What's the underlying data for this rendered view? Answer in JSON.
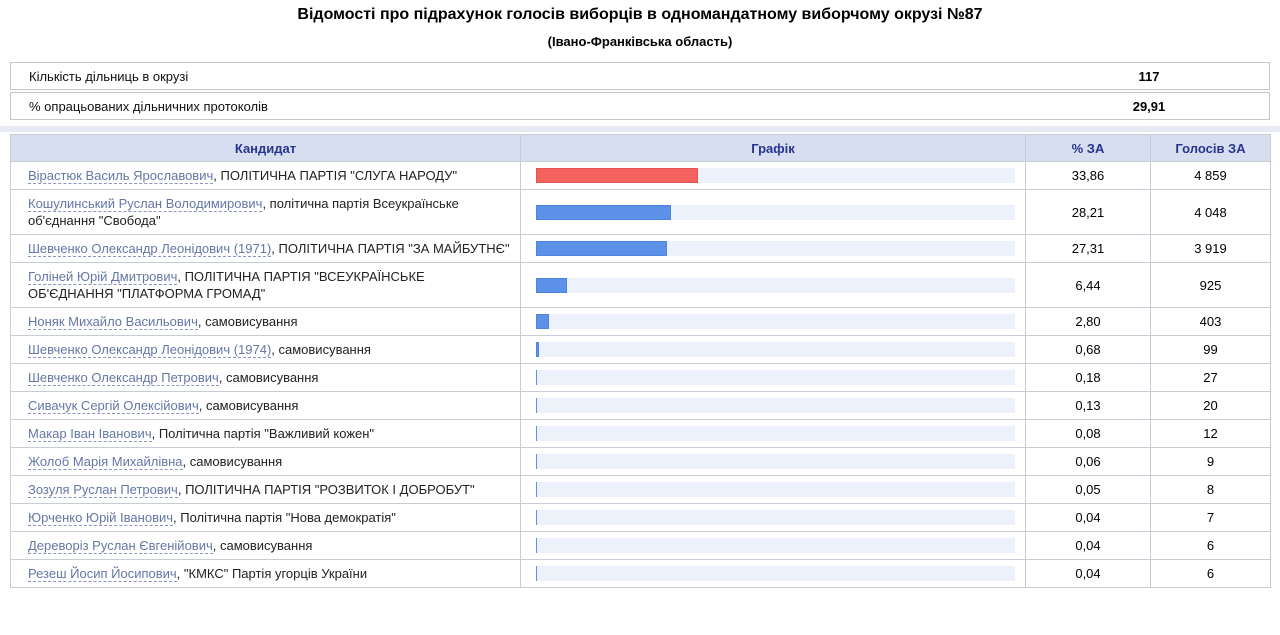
{
  "header": {
    "title": "Відомості про підрахунок голосів виборців в одномандатному виборчому окрузі №87",
    "subtitle": "(Івано-Франківська область)"
  },
  "info_rows": [
    {
      "label": "Кількість дільниць в окрузі",
      "value": "117"
    },
    {
      "label": "% опрацьованих дільничних протоколів",
      "value": "29,91"
    }
  ],
  "colors": {
    "leader_bar": "#f4625d",
    "leader_bar_border": "#e25550",
    "bar": "#5b92e8",
    "bar_border": "#4f86dc",
    "bar_track": "#edf1fb",
    "header_bg": "#d7def0",
    "header_text": "#27358f",
    "link": "#6577a6"
  },
  "table": {
    "headers": [
      "Кандидат",
      "Графік",
      "% ЗА",
      "Голосів ЗА"
    ],
    "rows": [
      {
        "candidate": "Вірастюк Василь Ярославович",
        "party": ", ПОЛІТИЧНА ПАРТІЯ \"СЛУГА НАРОДУ\"",
        "percent": "33,86",
        "votes": "4 859",
        "bar_percent": 33.86,
        "bar_color": "#f4625d",
        "bar_border": "#e25550"
      },
      {
        "candidate": "Кошулинський Руслан Володимирович",
        "party": ", політична партія Всеукраїнське об'єднання \"Свобода\"",
        "percent": "28,21",
        "votes": "4 048",
        "bar_percent": 28.21,
        "bar_color": "#5b92e8",
        "bar_border": "#4f86dc"
      },
      {
        "candidate": "Шевченко Олександр Леонідович (1971)",
        "party": ", ПОЛІТИЧНА ПАРТІЯ \"ЗА МАЙБУТНЄ\"",
        "percent": "27,31",
        "votes": "3 919",
        "bar_percent": 27.31,
        "bar_color": "#5b92e8",
        "bar_border": "#4f86dc"
      },
      {
        "candidate": "Голіней Юрій Дмитрович",
        "party": ", ПОЛІТИЧНА ПАРТІЯ \"ВСЕУКРАЇНСЬКЕ ОБ'ЄДНАННЯ \"ПЛАТФОРМА ГРОМАД\"",
        "percent": "6,44",
        "votes": "925",
        "bar_percent": 6.44,
        "bar_color": "#5b92e8",
        "bar_border": "#4f86dc"
      },
      {
        "candidate": "Ноняк Михайло Васильович",
        "party": ", самовисування",
        "percent": "2,80",
        "votes": "403",
        "bar_percent": 2.8,
        "bar_color": "#5b92e8",
        "bar_border": "#4f86dc"
      },
      {
        "candidate": "Шевченко Олександр Леонідович (1974)",
        "party": ", самовисування",
        "percent": "0,68",
        "votes": "99",
        "bar_percent": 0.68,
        "bar_color": "#5b92e8",
        "bar_border": "#4f86dc"
      },
      {
        "candidate": "Шевченко Олександр Петрович",
        "party": ", самовисування",
        "percent": "0,18",
        "votes": "27",
        "bar_percent": 0.18,
        "bar_color": "#5b92e8",
        "bar_border": "#4f86dc"
      },
      {
        "candidate": "Сивачук Сергій Олексійович",
        "party": ", самовисування",
        "percent": "0,13",
        "votes": "20",
        "bar_percent": 0.13,
        "bar_color": "#5b92e8",
        "bar_border": "#4f86dc"
      },
      {
        "candidate": "Макар Іван Іванович",
        "party": ", Політична партія \"Важливий кожен\"",
        "percent": "0,08",
        "votes": "12",
        "bar_percent": 0.08,
        "bar_color": "#5b92e8",
        "bar_border": "#4f86dc"
      },
      {
        "candidate": "Жолоб Марія Михайлівна",
        "party": ", самовисування",
        "percent": "0,06",
        "votes": "9",
        "bar_percent": 0.06,
        "bar_color": "#5b92e8",
        "bar_border": "#4f86dc"
      },
      {
        "candidate": "Зозуля Руслан Петрович",
        "party": ", ПОЛІТИЧНА ПАРТІЯ \"РОЗВИТОК І ДОБРОБУТ\"",
        "percent": "0,05",
        "votes": "8",
        "bar_percent": 0.05,
        "bar_color": "#5b92e8",
        "bar_border": "#4f86dc"
      },
      {
        "candidate": "Юрченко Юрій Іванович",
        "party": ", Політична партія \"Нова демократія\"",
        "percent": "0,04",
        "votes": "7",
        "bar_percent": 0.04,
        "bar_color": "#5b92e8",
        "bar_border": "#4f86dc"
      },
      {
        "candidate": "Дереворіз Руслан Євгенійович",
        "party": ", самовисування",
        "percent": "0,04",
        "votes": "6",
        "bar_percent": 0.04,
        "bar_color": "#5b92e8",
        "bar_border": "#4f86dc"
      },
      {
        "candidate": "Резеш Йосип Йосипович",
        "party": ", \"КМКС\" Партія угорців України",
        "percent": "0,04",
        "votes": "6",
        "bar_percent": 0.04,
        "bar_color": "#5b92e8",
        "bar_border": "#4f86dc"
      }
    ]
  }
}
